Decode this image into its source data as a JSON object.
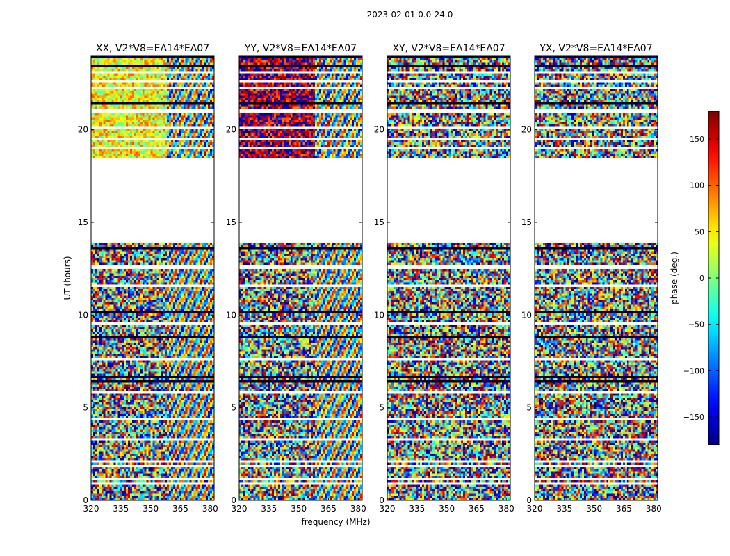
{
  "figure": {
    "suptitle": "2023-02-01 0.0-24.0",
    "xlabel": "frequency (MHz)",
    "ylabel": "UT (hours)",
    "colorbar_label": "phase (deg.)",
    "colorbar_footer": "......"
  },
  "chart_data": {
    "type": "heatmap",
    "panels": [
      {
        "title": "XX, V2*V8=EA14*EA07",
        "pol": "XX",
        "coherent_above_350": true
      },
      {
        "title": "YY, V2*V8=EA14*EA07",
        "pol": "YY",
        "coherent_above_350": true
      },
      {
        "title": "XY, V2*V8=EA14*EA07",
        "pol": "XY",
        "coherent_above_350": false
      },
      {
        "title": "YX, V2*V8=EA14*EA07",
        "pol": "YX",
        "coherent_above_350": false
      }
    ],
    "xlim": [
      320,
      382
    ],
    "xticks": [
      320,
      335,
      350,
      365,
      380
    ],
    "ylim": [
      0,
      24
    ],
    "yticks": [
      0,
      5,
      10,
      15,
      20
    ],
    "colorbar": {
      "range": [
        -180,
        180
      ],
      "ticks": [
        -150,
        -100,
        -50,
        0,
        50,
        100,
        150
      ]
    },
    "gap_hours": [
      [
        18.5,
        13.9
      ]
    ],
    "blank_rows_hours": [
      0.9,
      1.1,
      1.9,
      2.1,
      3.3,
      4.4,
      5.8,
      7.6,
      9.5,
      11.6,
      12.6,
      14.3,
      19.0,
      19.5,
      20.1,
      21.0,
      22.3,
      22.6,
      23.1
    ],
    "dark_rows_hours": [
      6.4,
      6.7,
      8.4,
      8.8,
      10.1,
      13.6,
      21.4,
      23.5,
      23.9
    ],
    "colormap": "jet"
  }
}
